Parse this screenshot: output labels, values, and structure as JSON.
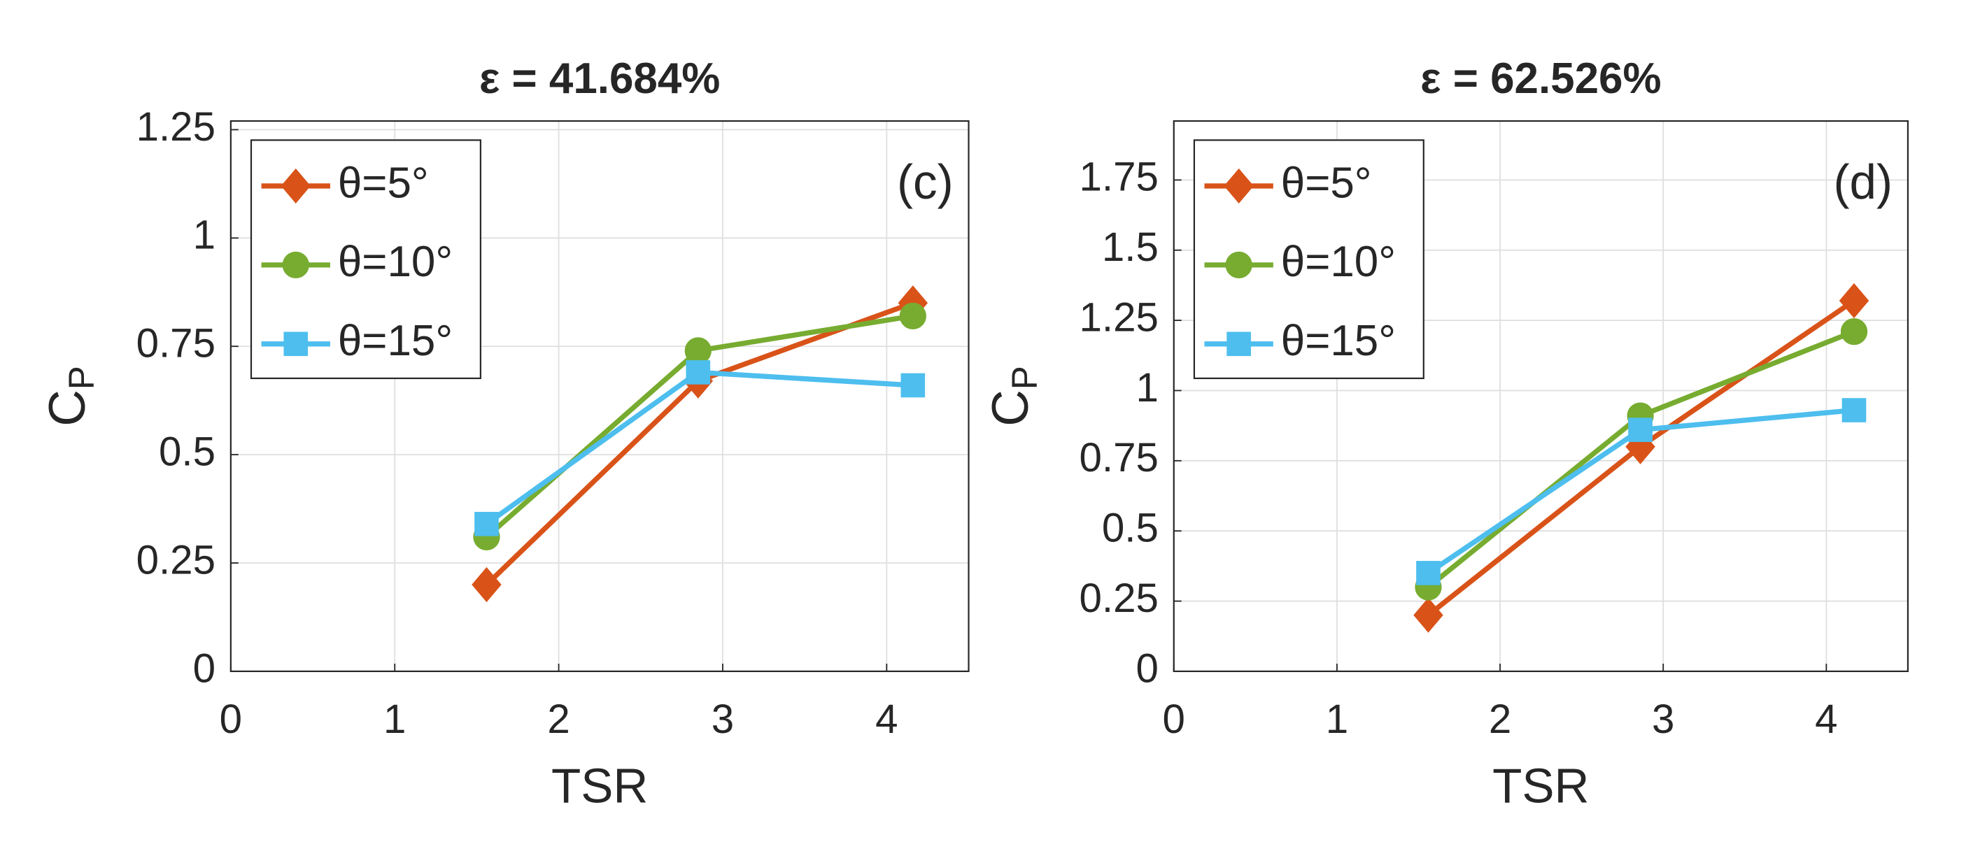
{
  "chart_data": [
    {
      "type": "line",
      "title": "ε = 41.684%",
      "xlabel": "TSR",
      "ylabel": {
        "base": "C",
        "subscript": "P"
      },
      "annotation": "(c)",
      "xlim": [
        0,
        4.5
      ],
      "xticks": [
        0,
        1,
        2,
        3,
        4
      ],
      "ylim": [
        0,
        1.27
      ],
      "yticks": [
        0,
        0.25,
        0.5,
        0.75,
        1,
        1.25
      ],
      "grid": true,
      "legend": "upper left",
      "x": [
        1.56,
        2.85,
        4.16
      ],
      "series": [
        {
          "name": "θ=5°",
          "color": "#d95319",
          "marker": "diamond",
          "values": [
            0.2,
            0.67,
            0.85
          ]
        },
        {
          "name": "θ=10°",
          "color": "#77ac30",
          "marker": "circle",
          "values": [
            0.31,
            0.74,
            0.82
          ]
        },
        {
          "name": "θ=15°",
          "color": "#4dbeee",
          "marker": "square",
          "values": [
            0.34,
            0.69,
            0.66
          ]
        }
      ]
    },
    {
      "type": "line",
      "title": "ε = 62.526%",
      "xlabel": "TSR",
      "ylabel": {
        "base": "C",
        "subscript": "P"
      },
      "annotation": "(d)",
      "xlim": [
        0,
        4.5
      ],
      "xticks": [
        0,
        1,
        2,
        3,
        4
      ],
      "ylim": [
        0,
        1.96
      ],
      "yticks": [
        0,
        0.25,
        0.5,
        0.75,
        1,
        1.25,
        1.5,
        1.75
      ],
      "grid": true,
      "legend": "upper left",
      "x": [
        1.56,
        2.86,
        4.17
      ],
      "series": [
        {
          "name": "θ=5°",
          "color": "#d95319",
          "marker": "diamond",
          "values": [
            0.2,
            0.8,
            1.32
          ]
        },
        {
          "name": "θ=10°",
          "color": "#77ac30",
          "marker": "circle",
          "values": [
            0.3,
            0.91,
            1.21
          ]
        },
        {
          "name": "θ=15°",
          "color": "#4dbeee",
          "marker": "square",
          "values": [
            0.35,
            0.86,
            0.93
          ]
        }
      ]
    }
  ]
}
